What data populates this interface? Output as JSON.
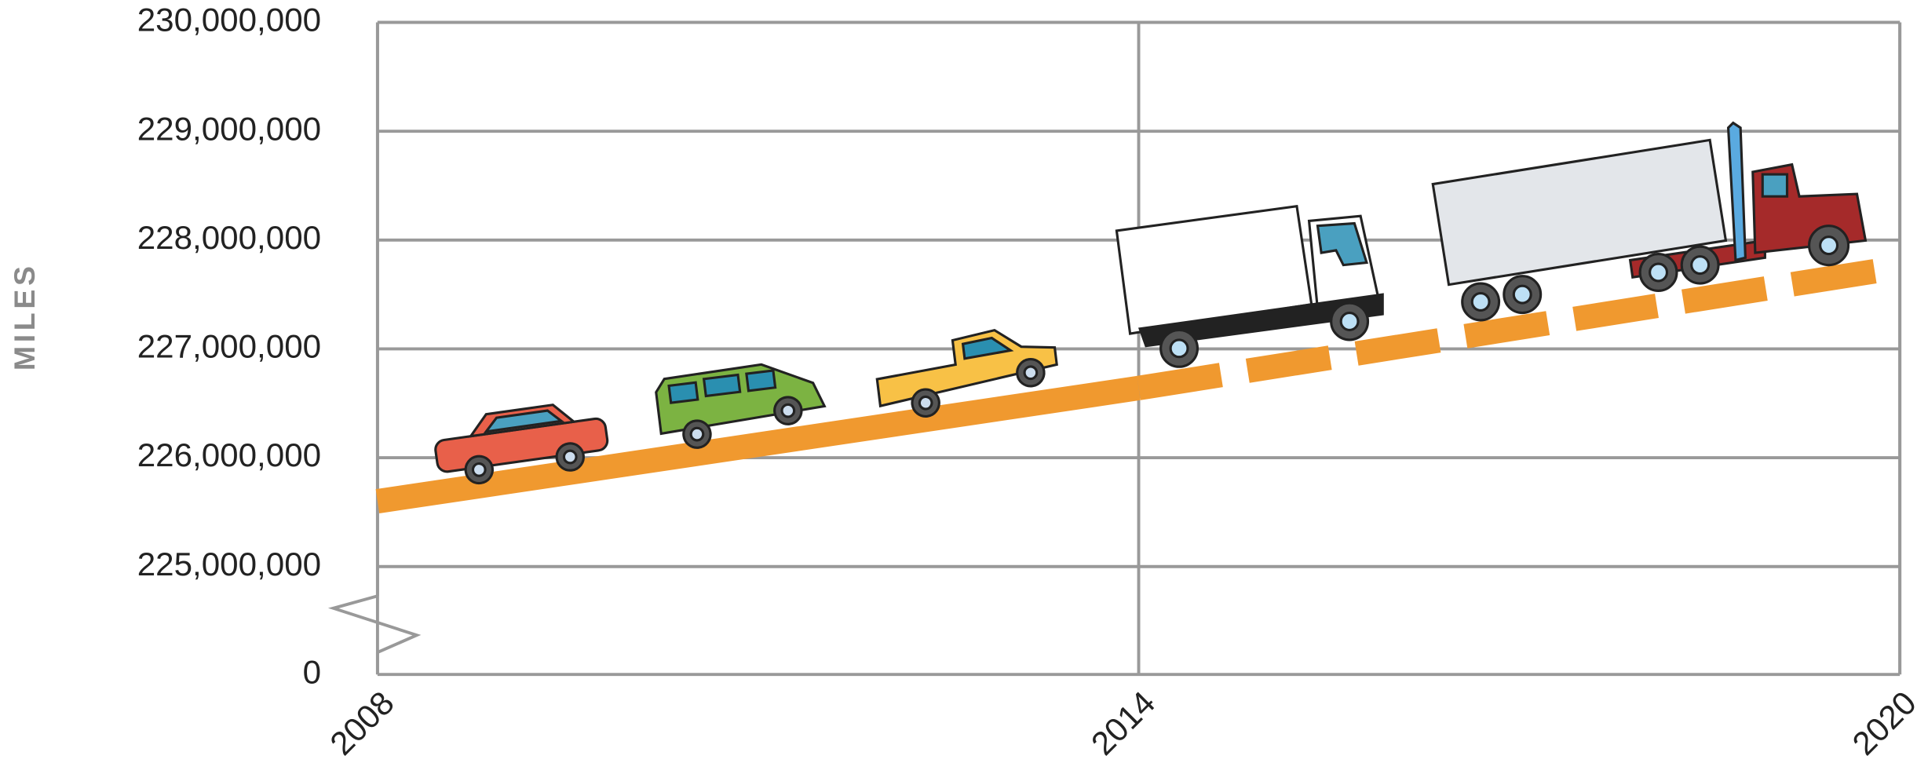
{
  "chart_data": {
    "type": "line",
    "y_label": "MILES",
    "x": [
      2008,
      2014,
      2020
    ],
    "xlim": [
      2008,
      2020
    ],
    "xticks": [
      2008,
      2014,
      2020
    ],
    "ylim": [
      0,
      230000000
    ],
    "axis_break": [
      0,
      225000000
    ],
    "yticks": [
      0,
      {
        "value": 225000000,
        "label": "225,000,000"
      },
      {
        "value": 226000000,
        "label": "226,000,000"
      },
      {
        "value": 227000000,
        "label": "227,000,000"
      },
      {
        "value": 228000000,
        "label": "228,000,000"
      },
      {
        "value": 229000000,
        "label": "229,000,000"
      },
      {
        "value": 230000000,
        "label": "230,000,000"
      }
    ],
    "grid": true,
    "series": [
      {
        "color": "#f0992f",
        "dashed": false,
        "values": [
          225600000,
          226640000,
          null
        ]
      },
      {
        "color": "#f0992f",
        "dashed": true,
        "values": [
          null,
          226640000,
          227750000
        ]
      }
    ]
  }
}
